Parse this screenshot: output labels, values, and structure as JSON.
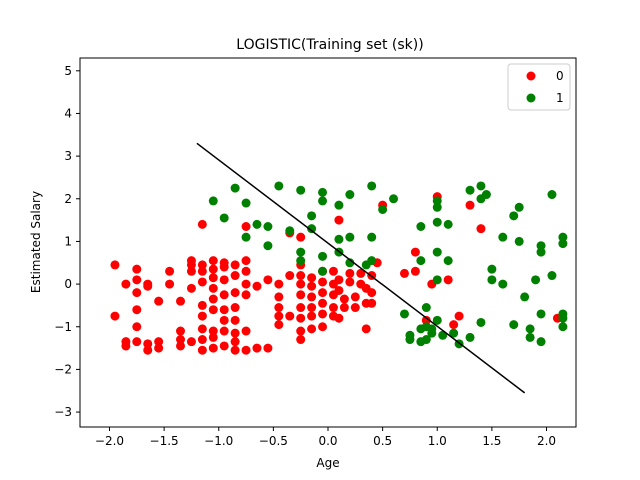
{
  "chart_data": {
    "type": "scatter",
    "title": "LOGISTIC(Training set (sk))",
    "xlabel": "Age",
    "ylabel": "Estimated Salary",
    "xlim": [
      -2.27,
      2.27
    ],
    "ylim": [
      -3.35,
      5.3
    ],
    "xticks": [
      -2.0,
      -1.5,
      -1.0,
      -0.5,
      0.0,
      0.5,
      1.0,
      1.5,
      2.0
    ],
    "xtick_labels": [
      "−2.0",
      "−1.5",
      "−1.0",
      "−0.5",
      "0.0",
      "0.5",
      "1.0",
      "1.5",
      "2.0"
    ],
    "yticks": [
      -3,
      -2,
      -1,
      0,
      1,
      2,
      3,
      4,
      5
    ],
    "ytick_labels": [
      "−3",
      "−2",
      "−1",
      "0",
      "1",
      "2",
      "3",
      "4",
      "5"
    ],
    "grid": false,
    "legend_position": "top-right",
    "colors": {
      "0": "#ff0000",
      "1": "#008000",
      "line": "#000000"
    },
    "series": [
      {
        "name": "0",
        "color": "#ff0000",
        "points": [
          [
            -1.95,
            0.45
          ],
          [
            -1.95,
            -0.75
          ],
          [
            -1.85,
            0.0
          ],
          [
            -1.85,
            -1.35
          ],
          [
            -1.85,
            -1.45
          ],
          [
            -1.75,
            0.35
          ],
          [
            -1.75,
            0.1
          ],
          [
            -1.75,
            -0.2
          ],
          [
            -1.75,
            -0.6
          ],
          [
            -1.75,
            -1.0
          ],
          [
            -1.75,
            -1.35
          ],
          [
            -1.65,
            0.0
          ],
          [
            -1.65,
            -0.05
          ],
          [
            -1.65,
            -1.4
          ],
          [
            -1.65,
            -1.55
          ],
          [
            -1.55,
            -0.4
          ],
          [
            -1.55,
            -1.35
          ],
          [
            -1.55,
            -1.5
          ],
          [
            -1.45,
            0.3
          ],
          [
            -1.45,
            0.0
          ],
          [
            -1.35,
            -0.4
          ],
          [
            -1.35,
            -1.1
          ],
          [
            -1.35,
            -1.3
          ],
          [
            -1.35,
            -1.45
          ],
          [
            -1.25,
            -1.35
          ],
          [
            -1.25,
            0.55
          ],
          [
            -1.25,
            0.45
          ],
          [
            -1.25,
            0.3
          ],
          [
            -1.25,
            -0.1
          ],
          [
            -1.15,
            0.45
          ],
          [
            -1.15,
            0.3
          ],
          [
            -1.15,
            0.05
          ],
          [
            -1.15,
            -0.5
          ],
          [
            -1.15,
            -0.75
          ],
          [
            -1.15,
            -1.05
          ],
          [
            -1.15,
            -1.3
          ],
          [
            -1.15,
            -1.55
          ],
          [
            -1.15,
            1.4
          ],
          [
            -1.05,
            0.55
          ],
          [
            -1.05,
            0.35
          ],
          [
            -1.05,
            0.15
          ],
          [
            -1.05,
            -0.1
          ],
          [
            -1.05,
            -0.35
          ],
          [
            -1.05,
            -0.6
          ],
          [
            -1.05,
            -1.1
          ],
          [
            -1.05,
            -1.25
          ],
          [
            -1.05,
            -1.5
          ],
          [
            -0.95,
            0.5
          ],
          [
            -0.95,
            0.4
          ],
          [
            -0.95,
            0.1
          ],
          [
            -0.95,
            -0.25
          ],
          [
            -0.95,
            -0.6
          ],
          [
            -0.95,
            -0.85
          ],
          [
            -0.95,
            -1.1
          ],
          [
            -0.95,
            -1.45
          ],
          [
            -0.85,
            0.45
          ],
          [
            -0.85,
            0.2
          ],
          [
            -0.85,
            -0.2
          ],
          [
            -0.85,
            -0.55
          ],
          [
            -0.85,
            -0.85
          ],
          [
            -0.85,
            -1.15
          ],
          [
            -0.85,
            -1.35
          ],
          [
            -0.85,
            -1.55
          ],
          [
            -0.75,
            1.35
          ],
          [
            -0.75,
            0.55
          ],
          [
            -0.75,
            0.3
          ],
          [
            -0.75,
            0.0
          ],
          [
            -0.75,
            -0.25
          ],
          [
            -0.75,
            -1.1
          ],
          [
            -0.75,
            -1.55
          ],
          [
            -0.65,
            -0.05
          ],
          [
            -0.65,
            -1.5
          ],
          [
            -0.55,
            0.1
          ],
          [
            -0.55,
            -1.5
          ],
          [
            -0.45,
            0.0
          ],
          [
            -0.45,
            -0.3
          ],
          [
            -0.45,
            -0.55
          ],
          [
            -0.45,
            -0.75
          ],
          [
            -0.45,
            -0.95
          ],
          [
            -0.35,
            1.2
          ],
          [
            -0.35,
            0.2
          ],
          [
            -0.35,
            -0.75
          ],
          [
            -0.25,
            1.1
          ],
          [
            -0.25,
            0.45
          ],
          [
            -0.25,
            0.2
          ],
          [
            -0.25,
            0.0
          ],
          [
            -0.25,
            -0.25
          ],
          [
            -0.25,
            -0.55
          ],
          [
            -0.25,
            -0.8
          ],
          [
            -0.25,
            -1.1
          ],
          [
            -0.25,
            -1.3
          ],
          [
            -0.15,
            0.15
          ],
          [
            -0.15,
            -0.05
          ],
          [
            -0.15,
            -0.3
          ],
          [
            -0.15,
            -0.55
          ],
          [
            -0.15,
            -0.75
          ],
          [
            -0.15,
            -1.05
          ],
          [
            -0.05,
            0.3
          ],
          [
            -0.05,
            0.05
          ],
          [
            -0.05,
            -0.2
          ],
          [
            -0.05,
            -0.45
          ],
          [
            -0.05,
            -0.7
          ],
          [
            -0.05,
            -1.0
          ],
          [
            0.05,
            0.3
          ],
          [
            0.05,
            0.0
          ],
          [
            0.05,
            -0.25
          ],
          [
            0.05,
            -0.55
          ],
          [
            0.05,
            -0.75
          ],
          [
            0.1,
            1.5
          ],
          [
            0.1,
            0.1
          ],
          [
            0.1,
            -0.15
          ],
          [
            0.1,
            -0.8
          ],
          [
            0.15,
            -0.35
          ],
          [
            0.15,
            -0.55
          ],
          [
            0.2,
            0.25
          ],
          [
            0.2,
            0.05
          ],
          [
            0.25,
            -0.3
          ],
          [
            0.25,
            -0.55
          ],
          [
            0.3,
            0.0
          ],
          [
            0.3,
            0.25
          ],
          [
            0.35,
            -0.1
          ],
          [
            0.35,
            -0.45
          ],
          [
            0.35,
            -1.05
          ],
          [
            0.4,
            0.2
          ],
          [
            0.4,
            -0.2
          ],
          [
            0.4,
            -0.45
          ],
          [
            0.45,
            0.5
          ],
          [
            0.5,
            1.85
          ],
          [
            0.7,
            0.25
          ],
          [
            0.8,
            0.75
          ],
          [
            0.8,
            0.3
          ],
          [
            0.9,
            -0.85
          ],
          [
            0.95,
            0.0
          ],
          [
            1.0,
            2.05
          ],
          [
            1.1,
            0.1
          ],
          [
            1.15,
            -0.95
          ],
          [
            1.2,
            -0.75
          ],
          [
            1.3,
            1.85
          ],
          [
            1.4,
            1.3
          ],
          [
            2.1,
            -0.8
          ]
        ]
      },
      {
        "name": "1",
        "color": "#008000",
        "points": [
          [
            -1.05,
            1.95
          ],
          [
            -0.95,
            1.55
          ],
          [
            -0.85,
            2.25
          ],
          [
            -0.75,
            1.1
          ],
          [
            -0.75,
            1.9
          ],
          [
            -0.65,
            1.4
          ],
          [
            -0.55,
            1.35
          ],
          [
            -0.55,
            0.9
          ],
          [
            -0.45,
            2.3
          ],
          [
            -0.35,
            1.25
          ],
          [
            -0.25,
            2.2
          ],
          [
            -0.25,
            0.75
          ],
          [
            -0.25,
            0.55
          ],
          [
            -0.15,
            1.6
          ],
          [
            -0.15,
            1.3
          ],
          [
            -0.05,
            2.15
          ],
          [
            -0.05,
            1.95
          ],
          [
            -0.05,
            0.65
          ],
          [
            -0.05,
            0.3
          ],
          [
            0.1,
            1.85
          ],
          [
            0.1,
            1.05
          ],
          [
            0.1,
            0.75
          ],
          [
            0.2,
            2.1
          ],
          [
            0.2,
            1.1
          ],
          [
            0.2,
            0.5
          ],
          [
            0.35,
            0.45
          ],
          [
            0.4,
            2.3
          ],
          [
            0.4,
            1.1
          ],
          [
            0.4,
            0.55
          ],
          [
            0.5,
            1.75
          ],
          [
            0.6,
            2.0
          ],
          [
            0.7,
            -0.7
          ],
          [
            0.75,
            -1.3
          ],
          [
            0.85,
            1.35
          ],
          [
            0.85,
            0.55
          ],
          [
            0.85,
            -1.05
          ],
          [
            0.85,
            -1.35
          ],
          [
            0.9,
            -0.55
          ],
          [
            0.9,
            -1.0
          ],
          [
            0.9,
            -1.3
          ],
          [
            0.95,
            -1.05
          ],
          [
            1.0,
            1.95
          ],
          [
            1.0,
            1.8
          ],
          [
            1.0,
            1.45
          ],
          [
            1.0,
            0.75
          ],
          [
            1.0,
            0.1
          ],
          [
            1.0,
            -0.85
          ],
          [
            1.05,
            -1.2
          ],
          [
            1.1,
            1.4
          ],
          [
            1.1,
            0.55
          ],
          [
            1.15,
            -1.15
          ],
          [
            1.2,
            -1.4
          ],
          [
            1.3,
            2.2
          ],
          [
            1.3,
            -1.25
          ],
          [
            1.4,
            2.3
          ],
          [
            1.4,
            2.0
          ],
          [
            1.4,
            -0.9
          ],
          [
            1.45,
            2.1
          ],
          [
            1.5,
            0.35
          ],
          [
            1.5,
            0.1
          ],
          [
            1.6,
            1.1
          ],
          [
            1.6,
            0.0
          ],
          [
            1.7,
            1.6
          ],
          [
            1.75,
            1.8
          ],
          [
            1.75,
            1.0
          ],
          [
            1.8,
            -0.3
          ],
          [
            1.85,
            -1.05
          ],
          [
            1.85,
            -1.25
          ],
          [
            1.9,
            0.1
          ],
          [
            1.95,
            0.9
          ],
          [
            1.95,
            0.75
          ],
          [
            1.95,
            -0.7
          ],
          [
            2.05,
            2.1
          ],
          [
            2.05,
            0.2
          ],
          [
            2.15,
            1.1
          ],
          [
            2.15,
            0.95
          ],
          [
            2.15,
            -0.7
          ],
          [
            2.15,
            -0.8
          ],
          [
            2.15,
            -1.0
          ],
          [
            0.75,
            -1.2
          ],
          [
            0.95,
            -1.15
          ],
          [
            1.7,
            -0.95
          ],
          [
            1.95,
            -1.35
          ]
        ]
      }
    ],
    "decision_line": {
      "x": [
        -1.2,
        1.8
      ],
      "y": [
        3.3,
        -2.55
      ]
    }
  },
  "legend": {
    "items": [
      {
        "label": "0",
        "color": "#ff0000"
      },
      {
        "label": "1",
        "color": "#008000"
      }
    ]
  }
}
